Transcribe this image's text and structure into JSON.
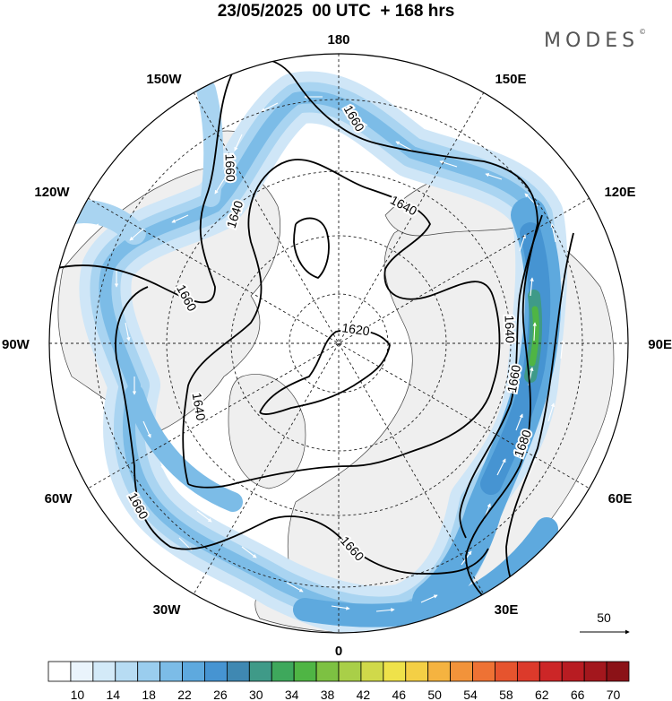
{
  "header": {
    "title": "23/05/2025  00 UTC  + 168 hrs",
    "brand": "MODES",
    "brand_mark": "©"
  },
  "map": {
    "projection": "north polar stereographic",
    "longitude_labels": {
      "top": "180",
      "bottom": "0",
      "left": "90W",
      "right": "90E",
      "upper_left": "150W",
      "upper_left_2": "120W",
      "upper_right": "150E",
      "upper_right_2": "120E",
      "lower_left": "60W",
      "lower_left_2": "30W",
      "lower_right": "60E",
      "lower_right_2": "30E"
    },
    "contour_labels": {
      "c1": "1660",
      "c2": "1660",
      "c3": "1640",
      "c4": "1640",
      "c5": "1660",
      "c6": "1620",
      "c7": "1640",
      "c8": "1640",
      "c9": "1660",
      "c10": "1680",
      "c11": "1660",
      "c12": "1660",
      "c13": "1660"
    },
    "reference_vector": "50"
  },
  "colorbar": {
    "ticks": [
      "10",
      "14",
      "18",
      "22",
      "26",
      "30",
      "34",
      "38",
      "42",
      "46",
      "50",
      "54",
      "58",
      "62",
      "66",
      "70"
    ],
    "colors": [
      "#ffffff",
      "#eaf4fc",
      "#d3eaf8",
      "#b7dcf3",
      "#9acdee",
      "#7cbce7",
      "#5ea9de",
      "#4694d2",
      "#3f88b2",
      "#3f9a88",
      "#3ea85c",
      "#4fb544",
      "#7dc142",
      "#a9cf48",
      "#d0d94a",
      "#efe24a",
      "#f4cf45",
      "#f5b340",
      "#f2933a",
      "#ee7234",
      "#e6542e",
      "#dc3a2b",
      "#cc2627",
      "#b81c22",
      "#a3171d",
      "#8b1217"
    ]
  }
}
